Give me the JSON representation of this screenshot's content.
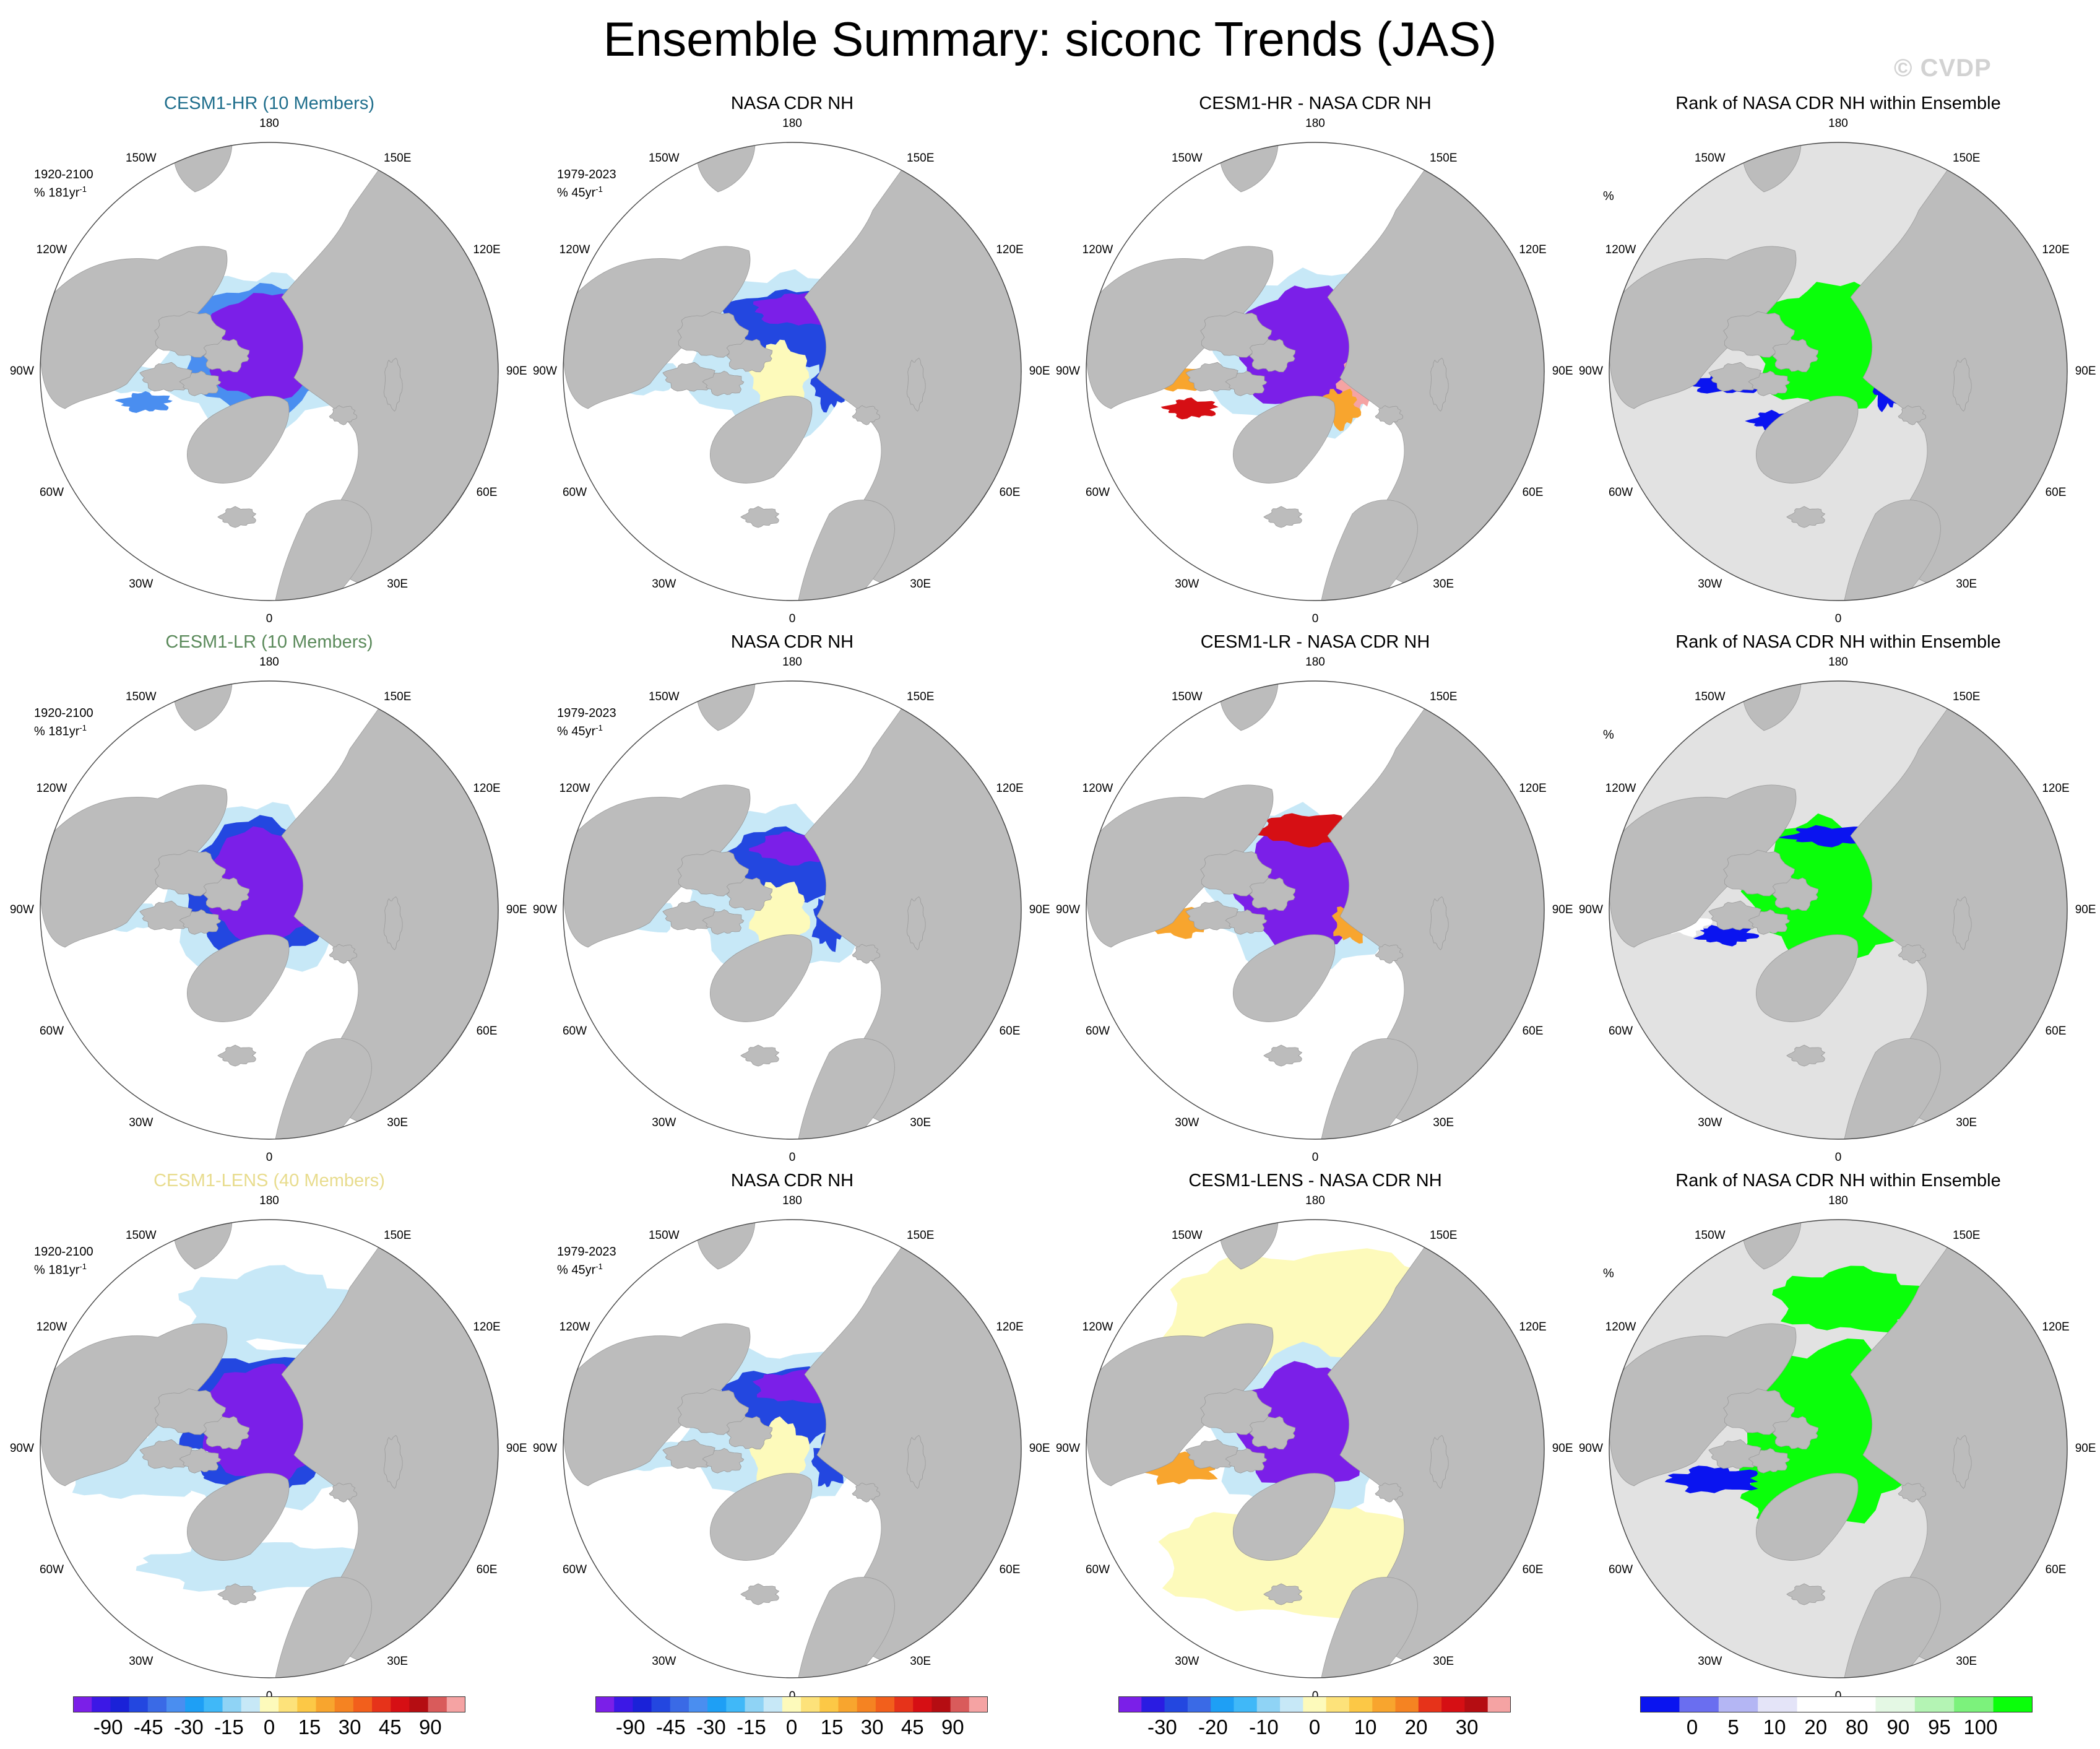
{
  "title": "Ensemble Summary: siconc Trends (JAS)",
  "watermark": "© CVDP",
  "colors": {
    "land": "#bcbcbc",
    "ocean": "#ffffff",
    "map_outline": "#000000",
    "title_hr": "#1f6e8c",
    "title_lr": "#5b8a5b",
    "title_lens": "#e8dc8e"
  },
  "longitude_labels": [
    "180",
    "150W",
    "150E",
    "120W",
    "120E",
    "90W",
    "90E",
    "60W",
    "60E",
    "30W",
    "30E",
    "0"
  ],
  "rows": [
    {
      "panels": [
        {
          "title": "CESM1-HR (10 Members)",
          "title_color": "#1f6e8c",
          "note_line1": "1920-2100",
          "note_line2": "% 181yr",
          "note_sup": "-1",
          "kind": "trend",
          "pattern": "hr"
        },
        {
          "title": "NASA CDR NH",
          "title_color": "#000000",
          "note_line1": "1979-2023",
          "note_line2": "% 45yr",
          "note_sup": "-1",
          "kind": "obs",
          "pattern": "obs"
        },
        {
          "title": "CESM1-HR - NASA CDR NH",
          "title_color": "#000000",
          "note_line1": "",
          "note_line2": "",
          "note_sup": "",
          "kind": "diff",
          "pattern": "diff1"
        },
        {
          "title": "Rank of NASA CDR NH within Ensemble",
          "title_color": "#000000",
          "note_line1": "%",
          "note_line2": "",
          "note_sup": "",
          "kind": "rank",
          "pattern": "rank1"
        }
      ]
    },
    {
      "panels": [
        {
          "title": "CESM1-LR (10 Members)",
          "title_color": "#5b8a5b",
          "note_line1": "1920-2100",
          "note_line2": "% 181yr",
          "note_sup": "-1",
          "kind": "trend",
          "pattern": "lr"
        },
        {
          "title": "NASA CDR NH",
          "title_color": "#000000",
          "note_line1": "1979-2023",
          "note_line2": "% 45yr",
          "note_sup": "-1",
          "kind": "obs",
          "pattern": "obs"
        },
        {
          "title": "CESM1-LR - NASA CDR NH",
          "title_color": "#000000",
          "note_line1": "",
          "note_line2": "",
          "note_sup": "",
          "kind": "diff",
          "pattern": "diff2"
        },
        {
          "title": "Rank of NASA CDR NH within Ensemble",
          "title_color": "#000000",
          "note_line1": "%",
          "note_line2": "",
          "note_sup": "",
          "kind": "rank",
          "pattern": "rank2"
        }
      ]
    },
    {
      "panels": [
        {
          "title": "CESM1-LENS (40 Members)",
          "title_color": "#e8dc8e",
          "note_line1": "1920-2100",
          "note_line2": "% 181yr",
          "note_sup": "-1",
          "kind": "trend",
          "pattern": "lens"
        },
        {
          "title": "NASA CDR NH",
          "title_color": "#000000",
          "note_line1": "1979-2023",
          "note_line2": "% 45yr",
          "note_sup": "-1",
          "kind": "obs",
          "pattern": "obs"
        },
        {
          "title": "CESM1-LENS - NASA CDR NH",
          "title_color": "#000000",
          "note_line1": "",
          "note_line2": "",
          "note_sup": "",
          "kind": "diff",
          "pattern": "diff3"
        },
        {
          "title": "Rank of NASA CDR NH within Ensemble",
          "title_color": "#000000",
          "note_line1": "%",
          "note_line2": "",
          "note_sup": "",
          "kind": "rank",
          "pattern": "rank3"
        }
      ]
    }
  ],
  "colorbars": [
    {
      "name": "trend",
      "colors": [
        "#7b1fe8",
        "#3c18e6",
        "#1a22d8",
        "#2347e0",
        "#3a6ae6",
        "#4a8ef0",
        "#1e9ff5",
        "#40b8f8",
        "#8fd3f5",
        "#c7e8f7",
        "#fdfabb",
        "#fde27a",
        "#fcc846",
        "#f8a52e",
        "#f58322",
        "#f25f1c",
        "#e6331a",
        "#d60f14",
        "#b50d12",
        "#d95b5b",
        "#f5a3a3"
      ],
      "labels": [
        "-90",
        "-45",
        "-30",
        "-15",
        "0",
        "15",
        "30",
        "45",
        "90"
      ]
    },
    {
      "name": "obs",
      "colors": [
        "#7b1fe8",
        "#3c18e6",
        "#1a22d8",
        "#2347e0",
        "#3a6ae6",
        "#4a8ef0",
        "#1e9ff5",
        "#40b8f8",
        "#8fd3f5",
        "#c7e8f7",
        "#fdfabb",
        "#fde27a",
        "#fcc846",
        "#f8a52e",
        "#f58322",
        "#f25f1c",
        "#e6331a",
        "#d60f14",
        "#b50d12",
        "#d95b5b",
        "#f5a3a3"
      ],
      "labels": [
        "-90",
        "-45",
        "-30",
        "-15",
        "0",
        "15",
        "30",
        "45",
        "90"
      ]
    },
    {
      "name": "diff",
      "colors": [
        "#7b1fe8",
        "#2a1ce2",
        "#2347e0",
        "#3a6ae6",
        "#1e9ff5",
        "#40b8f8",
        "#8fd3f5",
        "#c7e8f7",
        "#fdfabb",
        "#fde27a",
        "#fcc846",
        "#f8a52e",
        "#f58322",
        "#e6331a",
        "#d60f14",
        "#b50d12",
        "#f5a3a3"
      ],
      "labels": [
        "-30",
        "-20",
        "-10",
        "0",
        "10",
        "20",
        "30"
      ]
    },
    {
      "name": "rank",
      "colors": [
        "#0a14f0",
        "#6a6ef0",
        "#b4b6f4",
        "#e4e4f8",
        "#ffffff",
        "#ffffff",
        "#e4f8e4",
        "#b4f4b4",
        "#7cf27c",
        "#0aff0a"
      ],
      "labels": [
        "0",
        "5",
        "10",
        "20",
        "80",
        "90",
        "95",
        "100"
      ]
    }
  ],
  "chart_data": [
    {
      "type": "heatmap",
      "title": "Ensemble Summary: siconc Trends (JAS)",
      "panels": [
        "CESM1-HR (10 Members)",
        "NASA CDR NH",
        "CESM1-HR - NASA CDR NH",
        "Rank of NASA CDR NH within Ensemble",
        "CESM1-LR (10 Members)",
        "NASA CDR NH",
        "CESM1-LR - NASA CDR NH",
        "Rank of NASA CDR NH within Ensemble",
        "CESM1-LENS (40 Members)",
        "NASA CDR NH",
        "CESM1-LENS - NASA CDR NH",
        "Rank of NASA CDR NH within Ensemble"
      ],
      "trend_levels": [
        -90,
        -45,
        -30,
        -15,
        0,
        15,
        30,
        45,
        90
      ],
      "diff_levels": [
        -30,
        -20,
        -10,
        0,
        10,
        20,
        30
      ],
      "rank_levels": [
        0,
        5,
        10,
        20,
        80,
        90,
        95,
        100
      ]
    }
  ]
}
